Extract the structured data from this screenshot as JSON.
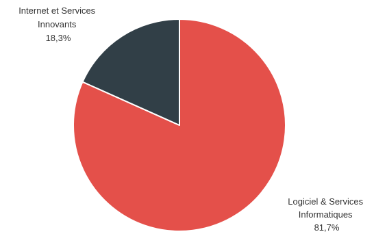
{
  "chart_data": {
    "type": "pie",
    "title": "",
    "slices": [
      {
        "label_lines": [
          "Logiciel & Services",
          "Informatiques"
        ],
        "value_label": "81,7%",
        "value": 81.7,
        "color": "#e4504a"
      },
      {
        "label_lines": [
          "Internet et Services",
          "Innovants"
        ],
        "value_label": "18,3%",
        "value": 18.3,
        "color": "#313f47"
      }
    ],
    "start": "top, clockwise"
  }
}
